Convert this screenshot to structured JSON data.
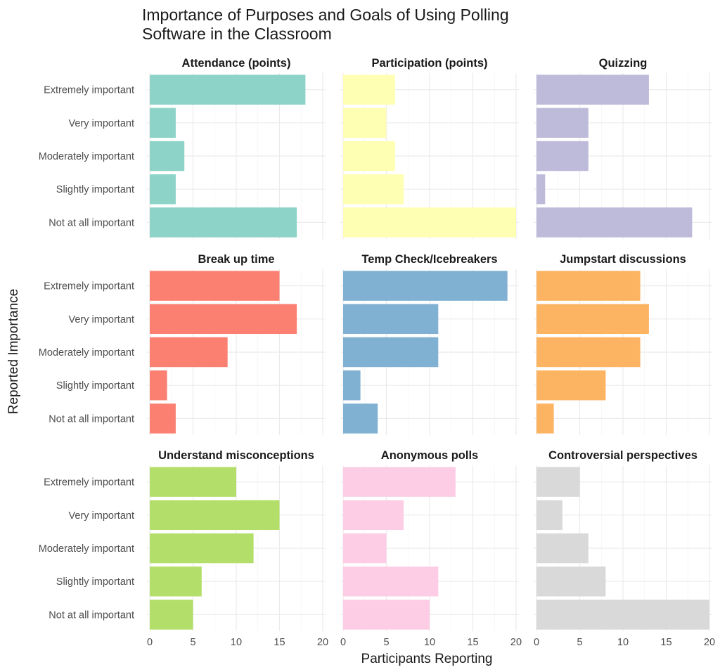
{
  "title_line1": "Importance of Purposes and Goals of Using Polling",
  "title_line2": "Software in the Classroom",
  "chart_data": {
    "type": "bar",
    "orientation": "horizontal",
    "layout": "facet-grid 3x3",
    "xlabel": "Participants Reporting",
    "ylabel": "Reported Importance",
    "xlim": [
      0,
      20
    ],
    "xticks": [
      0,
      5,
      10,
      15,
      20
    ],
    "grid": true,
    "categories": [
      "Extremely important",
      "Very important",
      "Moderately important",
      "Slightly important",
      "Not at all important"
    ],
    "facets": [
      {
        "name": "Attendance (points)",
        "color": "#8DD3C7",
        "values": [
          18,
          3,
          4,
          3,
          17
        ]
      },
      {
        "name": "Participation (points)",
        "color": "#FFFFB3",
        "values": [
          6,
          5,
          6,
          7,
          20
        ]
      },
      {
        "name": "Quizzing",
        "color": "#BEBADA",
        "values": [
          13,
          6,
          6,
          1,
          18
        ]
      },
      {
        "name": "Break up time",
        "color": "#FB8072",
        "values": [
          15,
          17,
          9,
          2,
          3
        ]
      },
      {
        "name": "Temp Check/Icebreakers",
        "color": "#80B1D3",
        "values": [
          19,
          11,
          11,
          2,
          4
        ]
      },
      {
        "name": "Jumpstart discussions",
        "color": "#FDB462",
        "values": [
          12,
          13,
          12,
          8,
          2
        ]
      },
      {
        "name": "Understand misconceptions",
        "color": "#B3DE69",
        "values": [
          10,
          15,
          12,
          6,
          5
        ]
      },
      {
        "name": "Anonymous polls",
        "color": "#FCCDE5",
        "values": [
          13,
          7,
          5,
          11,
          10
        ]
      },
      {
        "name": "Controversial perspectives",
        "color": "#D9D9D9",
        "values": [
          5,
          3,
          6,
          8,
          20
        ]
      }
    ]
  }
}
